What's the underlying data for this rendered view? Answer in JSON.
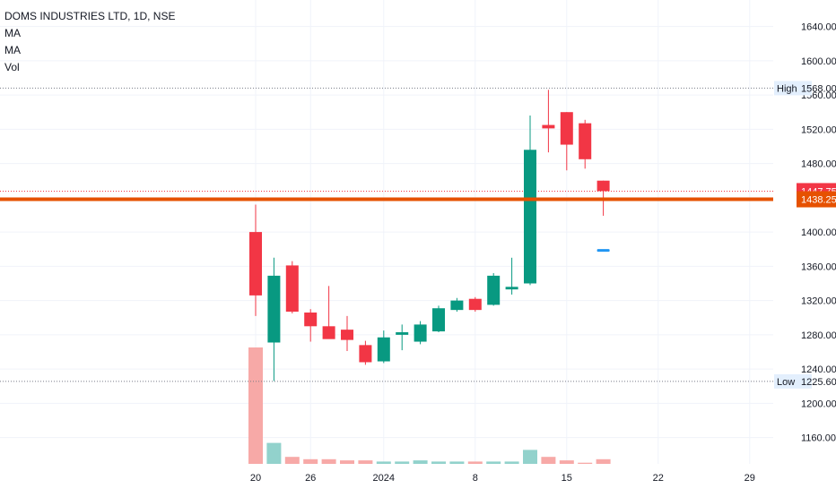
{
  "legend": {
    "title": "DOMS INDUSTRIES LTD, 1D, NSE",
    "ma1": "MA",
    "ma2": "MA",
    "vol": "Vol"
  },
  "colors": {
    "up": "#089981",
    "down": "#f23645",
    "vol_up": "#92d2cc",
    "vol_down": "#f7a9a7",
    "support": "#e65100",
    "grid": "#f0f3fa",
    "marker": "#2196f3"
  },
  "chart_data": {
    "type": "candlestick",
    "ylim": [
      1145,
      1650
    ],
    "y_ticks": [
      "1640.00",
      "1600.00",
      "1560.00",
      "1520.00",
      "1480.00",
      "1440.00",
      "1400.00",
      "1360.00",
      "1320.00",
      "1280.00",
      "1240.00",
      "1200.00",
      "1160.00"
    ],
    "x_ticks": [
      {
        "label": "20",
        "index": 0
      },
      {
        "label": "26",
        "index": 3
      },
      {
        "label": "2024",
        "index": 7
      },
      {
        "label": "8",
        "index": 12
      },
      {
        "label": "15",
        "index": 17
      },
      {
        "label": "22",
        "index": 22
      },
      {
        "label": "29",
        "index": 27
      }
    ],
    "candles": [
      {
        "o": 1400,
        "h": 1432,
        "l": 1302,
        "c": 1326,
        "v": 100
      },
      {
        "o": 1271,
        "h": 1370,
        "l": 1226,
        "c": 1349,
        "v": 18
      },
      {
        "o": 1361,
        "h": 1366,
        "l": 1305,
        "c": 1307,
        "v": 6
      },
      {
        "o": 1306,
        "h": 1310,
        "l": 1272,
        "c": 1290,
        "v": 4
      },
      {
        "o": 1290,
        "h": 1337,
        "l": 1276,
        "c": 1275,
        "v": 4
      },
      {
        "o": 1286,
        "h": 1302,
        "l": 1261,
        "c": 1274,
        "v": 3
      },
      {
        "o": 1268,
        "h": 1273,
        "l": 1245,
        "c": 1248,
        "v": 3
      },
      {
        "o": 1249,
        "h": 1285,
        "l": 1247,
        "c": 1277,
        "v": 2
      },
      {
        "o": 1280,
        "h": 1292,
        "l": 1262,
        "c": 1283,
        "v": 2
      },
      {
        "o": 1272,
        "h": 1296,
        "l": 1269,
        "c": 1292,
        "v": 3
      },
      {
        "o": 1284,
        "h": 1314,
        "l": 1283,
        "c": 1311,
        "v": 2
      },
      {
        "o": 1309,
        "h": 1323,
        "l": 1307,
        "c": 1320,
        "v": 2
      },
      {
        "o": 1322,
        "h": 1324,
        "l": 1307,
        "c": 1309,
        "v": 2
      },
      {
        "o": 1315,
        "h": 1352,
        "l": 1314,
        "c": 1349,
        "v": 2
      },
      {
        "o": 1333,
        "h": 1370,
        "l": 1327,
        "c": 1336,
        "v": 2
      },
      {
        "o": 1340,
        "h": 1536,
        "l": 1338,
        "c": 1496,
        "v": 12
      },
      {
        "o": 1525,
        "h": 1566,
        "l": 1493,
        "c": 1521,
        "v": 6
      },
      {
        "o": 1540,
        "h": 1540,
        "l": 1472,
        "c": 1502,
        "v": 3
      },
      {
        "o": 1527,
        "h": 1531,
        "l": 1474,
        "c": 1485,
        "v": 1
      },
      {
        "o": 1460,
        "h": 1460,
        "l": 1419,
        "c": 1447.75,
        "v": 4
      }
    ],
    "marker": {
      "index": 19,
      "value": 1378
    },
    "high": {
      "label": "High",
      "value": 1568,
      "text": "1568.00"
    },
    "low": {
      "label": "Low",
      "value": 1225.6,
      "text": "1225.60"
    },
    "last_price": {
      "value": 1447.75,
      "text": "1447.75"
    },
    "support_line": {
      "value": 1438.25,
      "text": "1438.25"
    }
  }
}
